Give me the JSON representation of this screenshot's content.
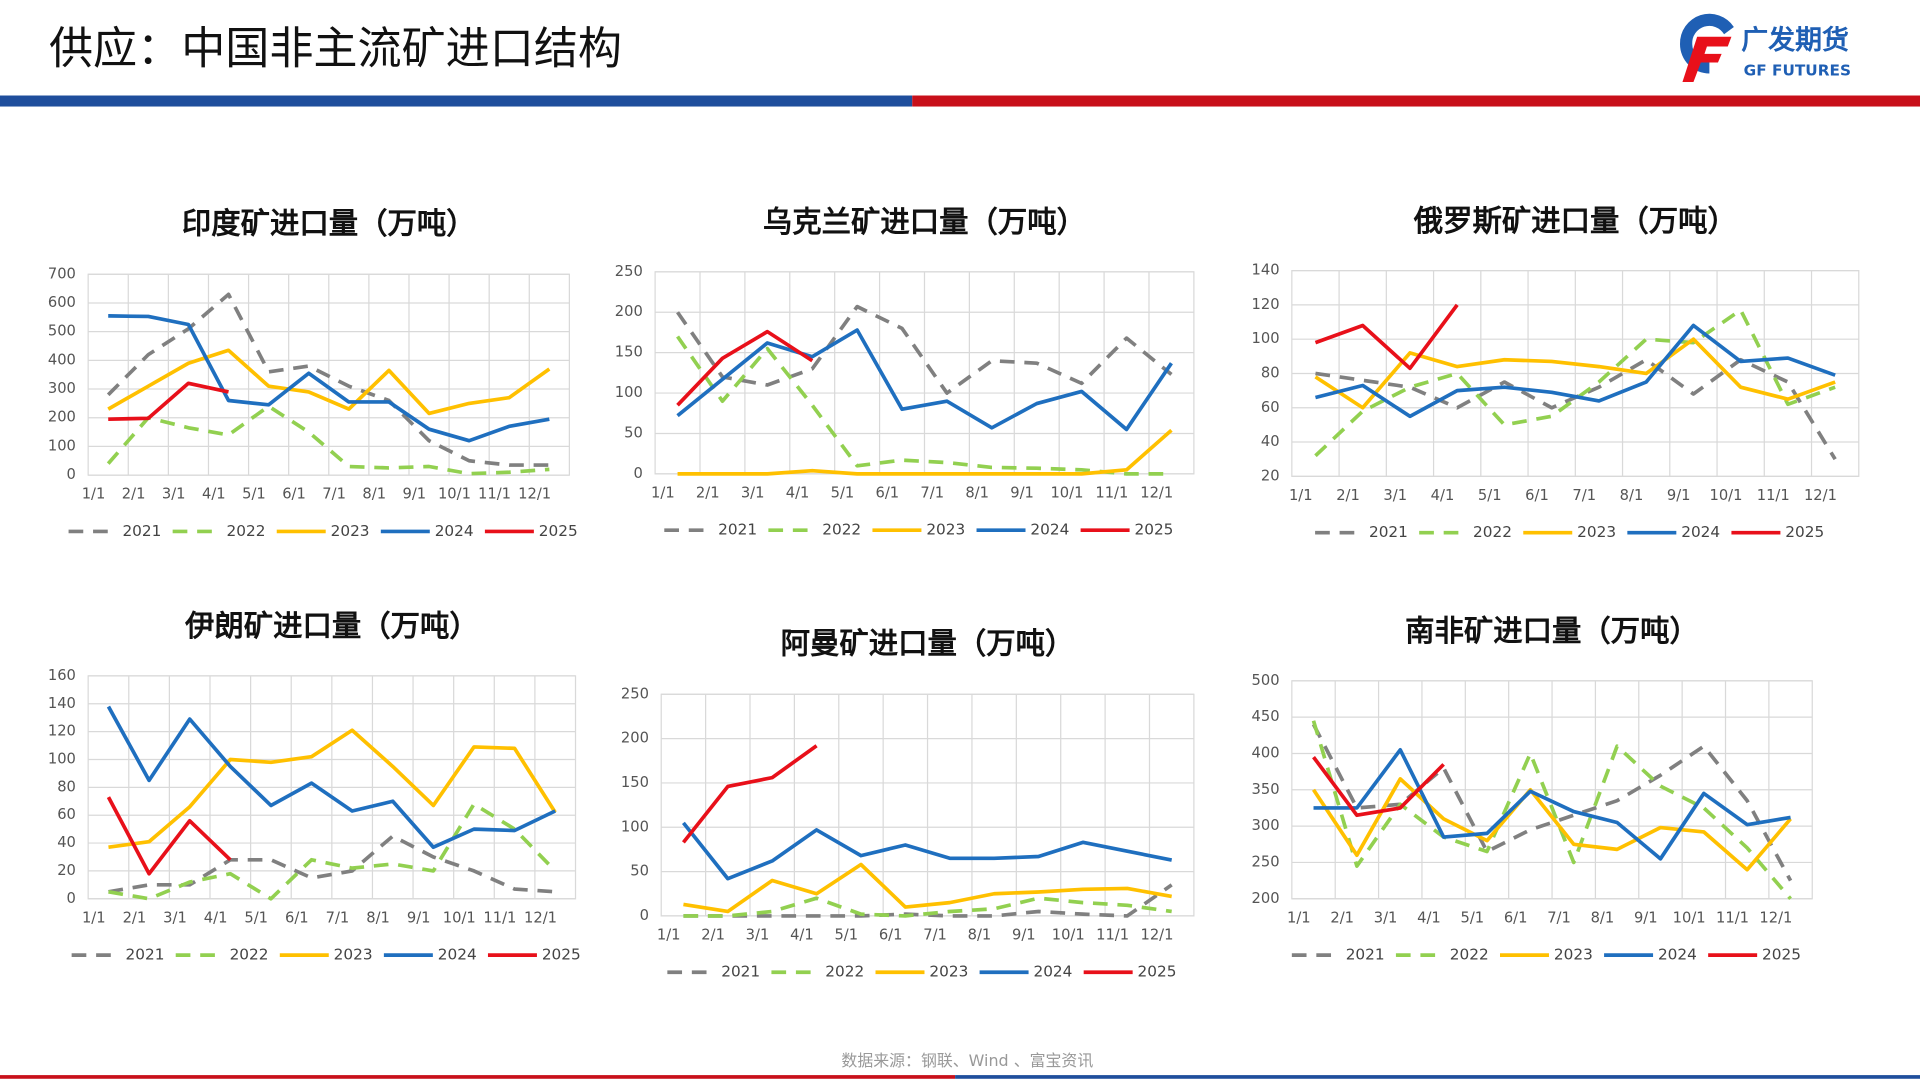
{
  "header": {
    "title": "供应：中国非主流矿进口结构",
    "logo_name": "广发期货",
    "logo_en": "GF FUTURES"
  },
  "footer": {
    "source": "数据来源：钢联、Wind 、富宝资讯"
  },
  "chart_data": [
    {
      "type": "line",
      "title": "印度矿进口量（万吨）",
      "categories": [
        "1/1",
        "2/1",
        "3/1",
        "4/1",
        "5/1",
        "6/1",
        "7/1",
        "8/1",
        "9/1",
        "10/1",
        "11/1",
        "12/1"
      ],
      "ylim": [
        0,
        700
      ],
      "yticks": [
        0,
        100,
        200,
        300,
        400,
        500,
        600,
        700
      ],
      "grid": true,
      "series": [
        {
          "name": "2021",
          "color": "#808080",
          "dash": true,
          "values": [
            280,
            420,
            510,
            630,
            360,
            380,
            310,
            260,
            120,
            50,
            35,
            35
          ]
        },
        {
          "name": "2022",
          "color": "#92d050",
          "dash": true,
          "values": [
            40,
            200,
            165,
            140,
            240,
            150,
            30,
            25,
            30,
            5,
            10,
            20
          ]
        },
        {
          "name": "2023",
          "color": "#ffc000",
          "dash": false,
          "values": [
            230,
            310,
            390,
            435,
            310,
            290,
            230,
            365,
            215,
            250,
            270,
            370
          ]
        },
        {
          "name": "2024",
          "color": "#1f6fbf",
          "dash": false,
          "values": [
            555,
            553,
            525,
            260,
            245,
            355,
            255,
            255,
            160,
            120,
            170,
            195
          ]
        },
        {
          "name": "2025",
          "color": "#e8101a",
          "dash": false,
          "values": [
            195,
            198,
            320,
            290,
            null,
            null,
            null,
            null,
            null,
            null,
            null,
            null
          ]
        }
      ]
    },
    {
      "type": "line",
      "title": "乌克兰矿进口量（万吨）",
      "categories": [
        "1/1",
        "2/1",
        "3/1",
        "4/1",
        "5/1",
        "6/1",
        "7/1",
        "8/1",
        "9/1",
        "10/1",
        "11/1",
        "12/1"
      ],
      "ylim": [
        0,
        250
      ],
      "yticks": [
        0,
        50,
        100,
        150,
        200,
        250
      ],
      "grid": true,
      "series": [
        {
          "name": "2021",
          "color": "#808080",
          "dash": true,
          "values": [
            200,
            120,
            110,
            130,
            207,
            180,
            100,
            140,
            137,
            112,
            168,
            123
          ]
        },
        {
          "name": "2022",
          "color": "#92d050",
          "dash": true,
          "values": [
            170,
            90,
            155,
            85,
            10,
            17,
            14,
            8,
            7,
            5,
            0,
            0
          ]
        },
        {
          "name": "2023",
          "color": "#ffc000",
          "dash": false,
          "values": [
            0,
            0,
            0,
            4,
            0,
            0,
            0,
            0,
            0,
            0,
            5,
            54
          ]
        },
        {
          "name": "2024",
          "color": "#1f6fbf",
          "dash": false,
          "values": [
            72,
            117,
            162,
            145,
            178,
            80,
            90,
            57,
            87,
            102,
            55,
            137
          ]
        },
        {
          "name": "2025",
          "color": "#e8101a",
          "dash": false,
          "values": [
            85,
            143,
            176,
            140,
            null,
            null,
            null,
            null,
            null,
            null,
            null,
            null
          ]
        }
      ]
    },
    {
      "type": "line",
      "title": "俄罗斯矿进口量（万吨）",
      "categories": [
        "1/1",
        "2/1",
        "3/1",
        "4/1",
        "5/1",
        "6/1",
        "7/1",
        "8/1",
        "9/1",
        "10/1",
        "11/1",
        "12/1"
      ],
      "ylim": [
        20,
        140
      ],
      "yticks": [
        20,
        40,
        60,
        80,
        100,
        120,
        140
      ],
      "grid": true,
      "series": [
        {
          "name": "2021",
          "color": "#808080",
          "dash": true,
          "values": [
            80,
            76,
            72,
            60,
            75,
            60,
            72,
            88,
            68,
            88,
            75,
            30
          ]
        },
        {
          "name": "2022",
          "color": "#92d050",
          "dash": true,
          "values": [
            32,
            58,
            72,
            80,
            50,
            55,
            75,
            100,
            98,
            117,
            62,
            72
          ]
        },
        {
          "name": "2023",
          "color": "#ffc000",
          "dash": false,
          "values": [
            78,
            60,
            92,
            84,
            88,
            87,
            84,
            80,
            100,
            72,
            65,
            75
          ]
        },
        {
          "name": "2024",
          "color": "#1f6fbf",
          "dash": false,
          "values": [
            66,
            73,
            55,
            70,
            72,
            69,
            64,
            75,
            108,
            87,
            89,
            79
          ]
        },
        {
          "name": "2025",
          "color": "#e8101a",
          "dash": false,
          "values": [
            98,
            108,
            83,
            120,
            null,
            null,
            null,
            null,
            null,
            null,
            null,
            null
          ]
        }
      ]
    },
    {
      "type": "line",
      "title": "伊朗矿进口量（万吨）",
      "categories": [
        "1/1",
        "2/1",
        "3/1",
        "4/1",
        "5/1",
        "6/1",
        "7/1",
        "8/1",
        "9/1",
        "10/1",
        "11/1",
        "12/1"
      ],
      "ylim": [
        0,
        160
      ],
      "yticks": [
        0,
        20,
        40,
        60,
        80,
        100,
        120,
        140,
        160
      ],
      "grid": true,
      "series": [
        {
          "name": "2021",
          "color": "#808080",
          "dash": true,
          "values": [
            5,
            10,
            10,
            28,
            28,
            15,
            20,
            45,
            30,
            20,
            7,
            5
          ]
        },
        {
          "name": "2022",
          "color": "#92d050",
          "dash": true,
          "values": [
            5,
            0,
            12,
            18,
            0,
            28,
            22,
            25,
            20,
            68,
            50,
            20
          ]
        },
        {
          "name": "2023",
          "color": "#ffc000",
          "dash": false,
          "values": [
            37,
            41,
            66,
            100,
            98,
            102,
            121,
            95,
            67,
            109,
            108,
            62
          ]
        },
        {
          "name": "2024",
          "color": "#1f6fbf",
          "dash": false,
          "values": [
            138,
            85,
            129,
            95,
            67,
            83,
            63,
            70,
            37,
            50,
            49,
            63
          ]
        },
        {
          "name": "2025",
          "color": "#e8101a",
          "dash": false,
          "values": [
            73,
            18,
            56,
            28,
            null,
            null,
            null,
            null,
            null,
            null,
            null,
            null
          ]
        }
      ]
    },
    {
      "type": "line",
      "title": "阿曼矿进口量（万吨）",
      "categories": [
        "1/1",
        "2/1",
        "3/1",
        "4/1",
        "5/1",
        "6/1",
        "7/1",
        "8/1",
        "9/1",
        "10/1",
        "11/1",
        "12/1"
      ],
      "ylim": [
        0,
        250
      ],
      "yticks": [
        0,
        50,
        100,
        150,
        200,
        250
      ],
      "grid": true,
      "series": [
        {
          "name": "2021",
          "color": "#808080",
          "dash": true,
          "values": [
            0,
            0,
            0,
            0,
            0,
            2,
            0,
            0,
            5,
            2,
            0,
            35
          ]
        },
        {
          "name": "2022",
          "color": "#92d050",
          "dash": true,
          "values": [
            0,
            0,
            5,
            20,
            2,
            0,
            5,
            8,
            20,
            15,
            12,
            5
          ]
        },
        {
          "name": "2023",
          "color": "#ffc000",
          "dash": false,
          "values": [
            13,
            5,
            40,
            25,
            58,
            10,
            15,
            25,
            27,
            30,
            31,
            22
          ]
        },
        {
          "name": "2024",
          "color": "#1f6fbf",
          "dash": false,
          "values": [
            105,
            42,
            62,
            97,
            68,
            80,
            65,
            65,
            67,
            83,
            73,
            63
          ]
        },
        {
          "name": "2025",
          "color": "#e8101a",
          "dash": false,
          "values": [
            83,
            146,
            156,
            192,
            null,
            null,
            null,
            null,
            null,
            null,
            null,
            null
          ]
        }
      ]
    },
    {
      "type": "line",
      "title": "南非矿进口量（万吨）",
      "categories": [
        "1/1",
        "2/1",
        "3/1",
        "4/1",
        "5/1",
        "6/1",
        "7/1",
        "8/1",
        "9/1",
        "10/1",
        "11/1",
        "12/1"
      ],
      "ylim": [
        200,
        500
      ],
      "yticks": [
        200,
        250,
        300,
        350,
        400,
        450,
        500
      ],
      "grid": true,
      "series": [
        {
          "name": "2021",
          "color": "#808080",
          "dash": true,
          "values": [
            440,
            325,
            330,
            380,
            265,
            295,
            315,
            335,
            370,
            410,
            335,
            225
          ]
        },
        {
          "name": "2022",
          "color": "#92d050",
          "dash": true,
          "values": [
            445,
            245,
            330,
            285,
            265,
            400,
            250,
            410,
            355,
            325,
            270,
            200
          ]
        },
        {
          "name": "2023",
          "color": "#ffc000",
          "dash": false,
          "values": [
            350,
            260,
            365,
            310,
            280,
            350,
            275,
            268,
            298,
            292,
            240,
            310
          ]
        },
        {
          "name": "2024",
          "color": "#1f6fbf",
          "dash": false,
          "values": [
            325,
            325,
            405,
            285,
            290,
            348,
            320,
            305,
            255,
            345,
            302,
            312
          ]
        },
        {
          "name": "2025",
          "color": "#e8101a",
          "dash": false,
          "values": [
            395,
            315,
            325,
            385,
            null,
            null,
            null,
            null,
            null,
            null,
            null,
            null
          ]
        }
      ]
    }
  ]
}
